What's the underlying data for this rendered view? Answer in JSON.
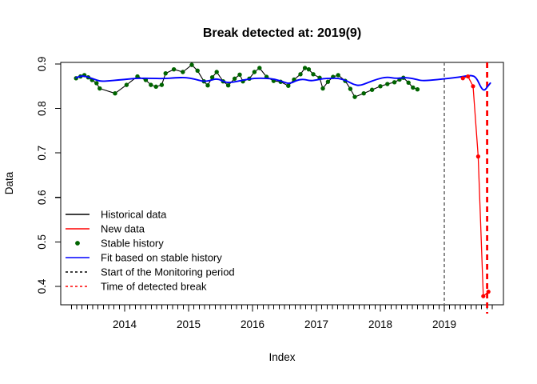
{
  "chart_data": {
    "type": "line",
    "title": "Break detected at: 2019(9)",
    "xlabel": "Index",
    "ylabel": "Data",
    "xlim": [
      2013.0,
      2019.925
    ],
    "ylim": [
      0.3586,
      0.9036
    ],
    "grid": false,
    "x_year_ticks": [
      2014,
      2015,
      2016,
      2017,
      2018,
      2019
    ],
    "x_year_tick_labels": [
      "2014",
      "2015",
      "2016",
      "2017",
      "2018",
      "2019"
    ],
    "y_ticks": [
      0.4,
      0.5,
      0.6,
      0.7,
      0.8,
      0.9
    ],
    "y_tick_labels": [
      "0.4",
      "0.5",
      "0.6",
      "0.7",
      "0.8",
      "0.9"
    ],
    "x_minor_ticks": {
      "start": 2013.1667,
      "step": 0.0833333,
      "end": 2019.8
    },
    "series": [
      {
        "id": "historical",
        "label": "Historical data",
        "color": "#000000",
        "width": 1.1,
        "dash": "",
        "smooth": false,
        "markers": {
          "color": "#006400",
          "radius": 2.7,
          "name": "stable-history-point"
        },
        "x": [
          2013.24,
          2013.31,
          2013.37,
          2013.43,
          2013.49,
          2013.56,
          2013.61,
          2013.85,
          2014.03,
          2014.2,
          2014.33,
          2014.41,
          2014.49,
          2014.58,
          2014.64,
          2014.77,
          2014.91,
          2015.05,
          2015.14,
          2015.24,
          2015.3,
          2015.37,
          2015.44,
          2015.54,
          2015.62,
          2015.72,
          2015.8,
          2015.85,
          2015.95,
          2016.03,
          2016.11,
          2016.22,
          2016.33,
          2016.44,
          2016.56,
          2016.65,
          2016.75,
          2016.82,
          2016.88,
          2016.95,
          2017.05,
          2017.1,
          2017.18,
          2017.26,
          2017.34,
          2017.45,
          2017.53,
          2017.6,
          2017.74,
          2017.87,
          2018.0,
          2018.11,
          2018.22,
          2018.3,
          2018.36,
          2018.44,
          2018.51,
          2018.58
        ],
        "y": [
          0.868,
          0.872,
          0.875,
          0.87,
          0.864,
          0.857,
          0.845,
          0.834,
          0.853,
          0.872,
          0.864,
          0.853,
          0.849,
          0.853,
          0.879,
          0.888,
          0.882,
          0.898,
          0.885,
          0.861,
          0.852,
          0.87,
          0.882,
          0.861,
          0.852,
          0.867,
          0.876,
          0.861,
          0.867,
          0.882,
          0.891,
          0.871,
          0.862,
          0.86,
          0.851,
          0.865,
          0.877,
          0.891,
          0.888,
          0.877,
          0.869,
          0.845,
          0.86,
          0.871,
          0.875,
          0.862,
          0.844,
          0.826,
          0.834,
          0.842,
          0.85,
          0.855,
          0.859,
          0.865,
          0.869,
          0.858,
          0.847,
          0.843
        ]
      },
      {
        "id": "fit",
        "label": "Fit based on stable history",
        "color": "#0000ff",
        "width": 1.9,
        "dash": "",
        "smooth": true,
        "markers": null,
        "x": [
          2013.24,
          2013.32,
          2013.42,
          2013.52,
          2013.62,
          2013.75,
          2013.9,
          2014.05,
          2014.2,
          2014.4,
          2014.6,
          2014.8,
          2014.95,
          2015.1,
          2015.22,
          2015.32,
          2015.45,
          2015.58,
          2015.7,
          2015.82,
          2015.95,
          2016.05,
          2016.2,
          2016.35,
          2016.48,
          2016.58,
          2016.7,
          2016.8,
          2016.9,
          2017.0,
          2017.1,
          2017.22,
          2017.35,
          2017.48,
          2017.58,
          2017.68,
          2017.8,
          2017.95,
          2018.1,
          2018.25,
          2018.4,
          2018.55,
          2018.65,
          2018.9,
          2019.15,
          2019.3,
          2019.42,
          2019.5,
          2019.58,
          2019.63,
          2019.68,
          2019.72
        ],
        "y": [
          0.869,
          0.874,
          0.871,
          0.866,
          0.861,
          0.862,
          0.864,
          0.866,
          0.868,
          0.868,
          0.867,
          0.869,
          0.87,
          0.866,
          0.861,
          0.862,
          0.868,
          0.858,
          0.859,
          0.863,
          0.866,
          0.868,
          0.868,
          0.866,
          0.86,
          0.855,
          0.864,
          0.866,
          0.862,
          0.864,
          0.867,
          0.868,
          0.868,
          0.862,
          0.854,
          0.851,
          0.858,
          0.866,
          0.871,
          0.867,
          0.87,
          0.866,
          0.862,
          0.865,
          0.869,
          0.872,
          0.875,
          0.87,
          0.845,
          0.84,
          0.85,
          0.857
        ]
      },
      {
        "id": "new",
        "label": "New data",
        "color": "#ff0000",
        "width": 1.3,
        "dash": "",
        "smooth": false,
        "markers": {
          "color": "#ff0000",
          "radius": 2.6,
          "name": "new-data-point"
        },
        "x": [
          2019.29,
          2019.37,
          2019.45,
          2019.53,
          2019.61,
          2019.69
        ],
        "y": [
          0.868,
          0.872,
          0.85,
          0.692,
          0.378,
          0.388
        ]
      }
    ],
    "vlines": [
      {
        "id": "monitoring-start",
        "label": "Start of the Monitoring period",
        "x": 2019.0,
        "color": "#6e6e6e",
        "width": 1.6,
        "dash": "4,3",
        "extend_below": false
      },
      {
        "id": "detected-break",
        "label": "Time of detected break",
        "x": 2019.67,
        "color": "#ff0000",
        "width": 2.8,
        "dash": "7,5",
        "extend_below": true
      }
    ],
    "legend": {
      "position": "bottom-left",
      "box": false,
      "items": [
        {
          "label": "Historical data",
          "swatch": "line",
          "color": "#000000",
          "dash": ""
        },
        {
          "label": "New data",
          "swatch": "line",
          "color": "#ff0000",
          "dash": ""
        },
        {
          "label": "Stable history",
          "swatch": "dot",
          "color": "#006400",
          "dash": ""
        },
        {
          "label": "Fit based on stable history",
          "swatch": "line",
          "color": "#0000ff",
          "dash": ""
        },
        {
          "label": "Start of the Monitoring period",
          "swatch": "line",
          "color": "#000000",
          "dash": "3,3"
        },
        {
          "label": "Time of detected break",
          "swatch": "line",
          "color": "#ff0000",
          "dash": "3,3"
        }
      ]
    }
  }
}
